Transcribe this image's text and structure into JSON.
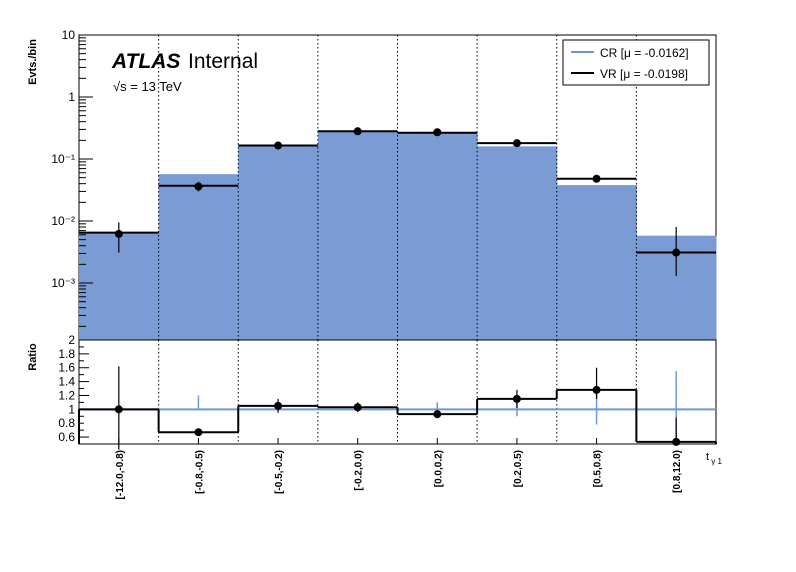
{
  "chart_data": [
    {
      "type": "bar",
      "panel": "main",
      "ylabel": "Evts./bin",
      "yscale": "log",
      "ylim": [
        0.00012,
        10
      ],
      "ytick_labels": [
        "10",
        "1",
        "10⁻¹",
        "10⁻²",
        "10⁻³"
      ],
      "ytick_values": [
        10,
        1,
        0.1,
        0.01,
        0.001
      ],
      "xlabel": "t γ 1",
      "categories": [
        "[-12.0,-0.8)",
        "[-0.8,-0.5)",
        "[-0.5,-0.2)",
        "[-0.2,0.0)",
        "[0.0,0.2)",
        "[0.2,0.5)",
        "[0.5,0.8)",
        "[0.8,12.0)"
      ],
      "series": [
        {
          "name": "CR [μ = -0.0162]",
          "style": "filled-histogram",
          "color": "#7a9bd4",
          "values": [
            0.0065,
            0.057,
            0.16,
            0.28,
            0.27,
            0.16,
            0.038,
            0.0058
          ]
        },
        {
          "name": "VR [μ = -0.0198]",
          "style": "line-histogram",
          "color": "#000000",
          "values": [
            0.0065,
            0.037,
            0.165,
            0.28,
            0.265,
            0.18,
            0.048,
            0.0031
          ]
        },
        {
          "name": "VR points",
          "style": "markers",
          "values": [
            0.0062,
            0.036,
            0.165,
            0.28,
            0.27,
            0.18,
            0.048,
            0.0031
          ],
          "err_low": [
            0.0031,
            0.03,
            0.155,
            0.268,
            0.258,
            0.168,
            0.043,
            0.0013
          ],
          "err_high": [
            0.0095,
            0.043,
            0.175,
            0.292,
            0.282,
            0.192,
            0.054,
            0.008
          ]
        }
      ],
      "legend_position": "top-right",
      "annotations": {
        "experiment": "ATLAS",
        "status": "Internal",
        "energy": "√s = 13 TeV"
      }
    },
    {
      "type": "line",
      "panel": "ratio",
      "ylabel": "Ratio",
      "ylim": [
        0.5,
        2.0
      ],
      "ytick_labels": [
        "2",
        "1.8",
        "1.6",
        "1.4",
        "1.2",
        "1",
        "0.8",
        "0.6"
      ],
      "ytick_values": [
        2.0,
        1.8,
        1.6,
        1.4,
        1.2,
        1.0,
        0.8,
        0.6
      ],
      "categories": [
        "[-12.0,-0.8)",
        "[-0.8,-0.5)",
        "[-0.5,-0.2)",
        "[-0.2,0.0)",
        "[0.0,0.2)",
        "[0.2,0.5)",
        "[0.5,0.8)",
        "[0.8,12.0)"
      ],
      "series": [
        {
          "name": "ratio",
          "values": [
            1.0,
            0.67,
            1.05,
            1.03,
            0.93,
            1.15,
            1.28,
            0.53
          ],
          "err_low": [
            0.42,
            0.62,
            0.95,
            0.96,
            0.87,
            1.02,
            1.15,
            0.48
          ],
          "err_high": [
            1.62,
            0.72,
            1.15,
            1.1,
            0.99,
            1.28,
            1.6,
            0.88
          ]
        },
        {
          "name": "CR error",
          "values": [
            1,
            1,
            1,
            1,
            1,
            1,
            1,
            1
          ],
          "err_low": [
            1,
            1,
            1,
            1,
            0.92,
            0.9,
            0.78,
            0.55
          ],
          "err_high": [
            1,
            1.2,
            1,
            1.06,
            1.1,
            1.12,
            1.25,
            1.55
          ]
        }
      ]
    }
  ]
}
